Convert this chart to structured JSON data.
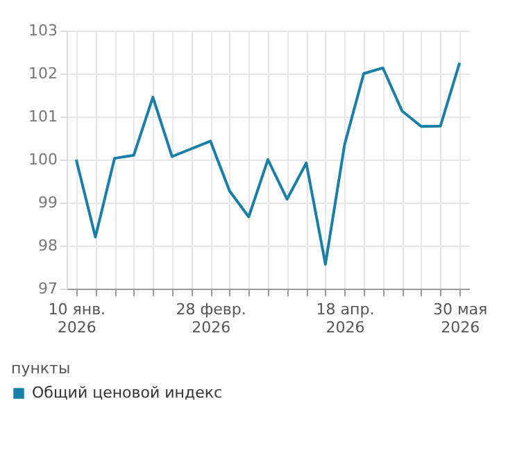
{
  "chart_data": {
    "type": "line",
    "x": [
      "2026-01-10",
      "2026-01-17",
      "2026-01-24",
      "2026-01-31",
      "2026-02-07",
      "2026-02-14",
      "2026-02-21",
      "2026-02-28",
      "2026-03-07",
      "2026-03-14",
      "2026-03-21",
      "2026-03-28",
      "2026-04-04",
      "2026-04-11",
      "2026-04-18",
      "2026-04-25",
      "2026-05-02",
      "2026-05-09",
      "2026-05-16",
      "2026-05-23",
      "2026-05-30"
    ],
    "series": [
      {
        "name": "Общий ценовой индекс",
        "color": "#1a7fa6",
        "values": [
          100.0,
          98.2,
          100.03,
          100.1,
          101.45,
          100.07,
          100.25,
          100.43,
          99.27,
          98.67,
          100.0,
          99.08,
          99.92,
          97.57,
          100.35,
          102.0,
          102.13,
          101.13,
          100.77,
          100.78,
          102.25
        ]
      }
    ],
    "ylabel": "пункты",
    "xlim": [
      "2026-01-06T12:00",
      "2026-06-02T12:00"
    ],
    "ylim": [
      97,
      103
    ],
    "yticks": [
      97,
      98,
      99,
      100,
      101,
      102,
      103
    ],
    "xticks": [
      {
        "value": "2026-01-10",
        "label": "10 янв.\n2026"
      },
      {
        "value": "2026-01-17",
        "label": null
      },
      {
        "value": "2026-01-24",
        "label": null
      },
      {
        "value": "2026-01-31",
        "label": null
      },
      {
        "value": "2026-02-07",
        "label": null
      },
      {
        "value": "2026-02-14",
        "label": null
      },
      {
        "value": "2026-02-21",
        "label": null
      },
      {
        "value": "2026-02-28",
        "label": "28 февр.\n2026"
      },
      {
        "value": "2026-03-07",
        "label": null
      },
      {
        "value": "2026-03-14",
        "label": null
      },
      {
        "value": "2026-03-21",
        "label": null
      },
      {
        "value": "2026-03-28",
        "label": null
      },
      {
        "value": "2026-04-04",
        "label": null
      },
      {
        "value": "2026-04-11",
        "label": null
      },
      {
        "value": "2026-04-18",
        "label": "18 апр.\n2026"
      },
      {
        "value": "2026-04-25",
        "label": null
      },
      {
        "value": "2026-05-02",
        "label": null
      },
      {
        "value": "2026-05-09",
        "label": null
      },
      {
        "value": "2026-05-16",
        "label": null
      },
      {
        "value": "2026-05-23",
        "label": null
      },
      {
        "value": "2026-05-30",
        "label": "30 мая\n2026"
      }
    ],
    "grid": true,
    "legend": "bottom left",
    "marker": "none",
    "line_style": "solid"
  }
}
